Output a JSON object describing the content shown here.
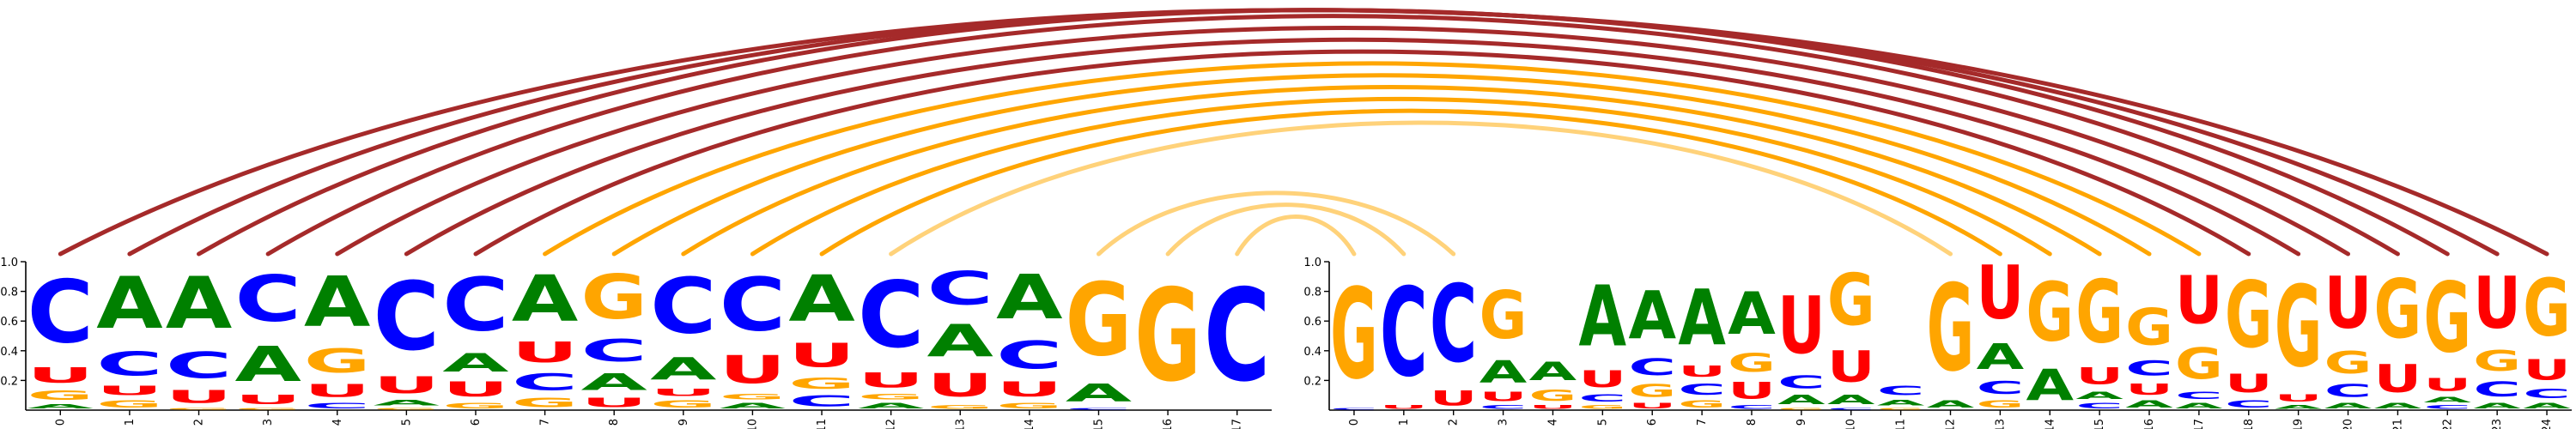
{
  "colors": {
    "A": "#008000",
    "C": "#0000ff",
    "G": "#ffa500",
    "U": "#ff0000",
    "arc_strong": "#a52a2a",
    "arc_medium": "#ffa500",
    "arc_light": "#ffd27a"
  },
  "chart_data": [
    {
      "type": "sequence_logo",
      "panel": "left",
      "ylim": [
        0,
        1
      ],
      "y_ticks": [
        "0.2",
        "0.4",
        "0.6",
        "0.8",
        "1.0"
      ],
      "x_ticks": [
        "0",
        "1",
        "2",
        "3",
        "4",
        "5",
        "6",
        "7",
        "8",
        "9",
        "10",
        "11",
        "12",
        "13",
        "14",
        "15",
        "16",
        "17"
      ],
      "positions": [
        {
          "A": 0.05,
          "C": 0.68,
          "G": 0.1,
          "U": 0.17
        },
        {
          "A": 0.56,
          "C": 0.26,
          "G": 0.08,
          "U": 0.1
        },
        {
          "A": 0.56,
          "C": 0.28,
          "G": 0.02,
          "U": 0.14
        },
        {
          "A": 0.38,
          "C": 0.5,
          "G": 0.02,
          "U": 0.1
        },
        {
          "A": 0.54,
          "C": 0.06,
          "G": 0.26,
          "U": 0.14
        },
        {
          "A": 0.06,
          "C": 0.74,
          "G": 0.02,
          "U": 0.18
        },
        {
          "A": 0.2,
          "C": 0.58,
          "G": 0.06,
          "U": 0.16
        },
        {
          "A": 0.5,
          "C": 0.18,
          "G": 0.1,
          "U": 0.22
        },
        {
          "A": 0.18,
          "C": 0.24,
          "G": 0.48,
          "U": 0.1
        },
        {
          "A": 0.24,
          "C": 0.6,
          "G": 0.08,
          "U": 0.08
        },
        {
          "A": 0.06,
          "C": 0.58,
          "G": 0.06,
          "U": 0.3
        },
        {
          "A": 0.5,
          "C": 0.12,
          "G": 0.12,
          "U": 0.26
        },
        {
          "A": 0.06,
          "C": 0.72,
          "G": 0.06,
          "U": 0.16
        },
        {
          "A": 0.35,
          "C": 0.36,
          "G": 0.04,
          "U": 0.25
        },
        {
          "A": 0.48,
          "C": 0.3,
          "G": 0.06,
          "U": 0.16
        },
        {
          "A": 0.19,
          "C": 0.02,
          "G": 0.79,
          "U": 0.0
        },
        {
          "A": 0.0,
          "C": 0.0,
          "G": 1.0,
          "U": 0.0
        },
        {
          "A": 0.0,
          "C": 1.0,
          "G": 0.0,
          "U": 0.0
        }
      ]
    },
    {
      "type": "sequence_logo",
      "panel": "right",
      "ylim": [
        0,
        1
      ],
      "y_ticks": [
        "0.2",
        "0.4",
        "0.6",
        "0.8",
        "1.0"
      ],
      "x_ticks": [
        "0",
        "1",
        "2",
        "3",
        "4",
        "5",
        "6",
        "7",
        "8",
        "9",
        "10",
        "11",
        "12",
        "13",
        "14",
        "15",
        "16",
        "17",
        "18",
        "19",
        "20",
        "21",
        "22",
        "23",
        "24"
      ],
      "positions": [
        {
          "A": 0.0,
          "C": 0.02,
          "G": 0.98,
          "U": 0.0
        },
        {
          "A": 0.0,
          "C": 0.96,
          "G": 0.0,
          "U": 0.04
        },
        {
          "A": 0.0,
          "C": 0.84,
          "G": 0.0,
          "U": 0.16
        },
        {
          "A": 0.24,
          "C": 0.04,
          "G": 0.52,
          "U": 0.1
        },
        {
          "A": 0.2,
          "C": 0.0,
          "G": 0.12,
          "U": 0.04
        },
        {
          "A": 0.66,
          "C": 0.08,
          "G": 0.04,
          "U": 0.18
        },
        {
          "A": 0.52,
          "C": 0.18,
          "G": 0.14,
          "U": 0.06
        },
        {
          "A": 0.6,
          "C": 0.12,
          "G": 0.08,
          "U": 0.12
        },
        {
          "A": 0.46,
          "C": 0.04,
          "G": 0.2,
          "U": 0.18
        },
        {
          "A": 0.1,
          "C": 0.14,
          "G": 0.02,
          "U": 0.62
        },
        {
          "A": 0.1,
          "C": 0.02,
          "G": 0.56,
          "U": 0.34
        },
        {
          "A": 0.06,
          "C": 0.1,
          "G": 0.02,
          "U": 0.0
        },
        {
          "A": 0.08,
          "C": 0.0,
          "G": 0.94,
          "U": 0.0
        },
        {
          "A": 0.28,
          "C": 0.14,
          "G": 0.08,
          "U": 0.58
        },
        {
          "A": 0.34,
          "C": 0.0,
          "G": 0.64,
          "U": 0.0
        },
        {
          "A": 0.08,
          "C": 0.06,
          "G": 0.68,
          "U": 0.18
        },
        {
          "A": 0.08,
          "C": 0.16,
          "G": 0.4,
          "U": 0.12
        },
        {
          "A": 0.06,
          "C": 0.08,
          "G": 0.34,
          "U": 0.52
        },
        {
          "A": 0.0,
          "C": 0.08,
          "G": 0.72,
          "U": 0.2
        },
        {
          "A": 0.04,
          "C": 0.0,
          "G": 0.88,
          "U": 0.08
        },
        {
          "A": 0.06,
          "C": 0.14,
          "G": 0.24,
          "U": 0.56
        },
        {
          "A": 0.06,
          "C": 0.0,
          "G": 0.64,
          "U": 0.3
        },
        {
          "A": 0.06,
          "C": 0.04,
          "G": 0.76,
          "U": 0.14
        },
        {
          "A": 0.06,
          "C": 0.16,
          "G": 0.22,
          "U": 0.56
        },
        {
          "A": 0.06,
          "C": 0.1,
          "G": 0.62,
          "U": 0.22
        }
      ]
    },
    {
      "type": "arc_diagram",
      "description_source": "base-pair arcs linking left positions to right positions",
      "arcs": [
        {
          "from": [
            "left",
            0
          ],
          "to": [
            "right",
            24
          ],
          "strength": "strong"
        },
        {
          "from": [
            "left",
            1
          ],
          "to": [
            "right",
            23
          ],
          "strength": "strong"
        },
        {
          "from": [
            "left",
            2
          ],
          "to": [
            "right",
            22
          ],
          "strength": "strong"
        },
        {
          "from": [
            "left",
            3
          ],
          "to": [
            "right",
            21
          ],
          "strength": "strong"
        },
        {
          "from": [
            "left",
            4
          ],
          "to": [
            "right",
            20
          ],
          "strength": "strong"
        },
        {
          "from": [
            "left",
            5
          ],
          "to": [
            "right",
            19
          ],
          "strength": "strong"
        },
        {
          "from": [
            "left",
            6
          ],
          "to": [
            "right",
            18
          ],
          "strength": "strong"
        },
        {
          "from": [
            "left",
            7
          ],
          "to": [
            "right",
            17
          ],
          "strength": "medium"
        },
        {
          "from": [
            "left",
            8
          ],
          "to": [
            "right",
            16
          ],
          "strength": "medium"
        },
        {
          "from": [
            "left",
            9
          ],
          "to": [
            "right",
            15
          ],
          "strength": "medium"
        },
        {
          "from": [
            "left",
            10
          ],
          "to": [
            "right",
            14
          ],
          "strength": "medium"
        },
        {
          "from": [
            "left",
            11
          ],
          "to": [
            "right",
            13
          ],
          "strength": "medium"
        },
        {
          "from": [
            "left",
            12
          ],
          "to": [
            "right",
            12
          ],
          "strength": "light"
        },
        {
          "from": [
            "left",
            15
          ],
          "to": [
            "right",
            2
          ],
          "strength": "light"
        },
        {
          "from": [
            "left",
            16
          ],
          "to": [
            "right",
            1
          ],
          "strength": "light"
        },
        {
          "from": [
            "left",
            17
          ],
          "to": [
            "right",
            0
          ],
          "strength": "light"
        }
      ]
    }
  ]
}
